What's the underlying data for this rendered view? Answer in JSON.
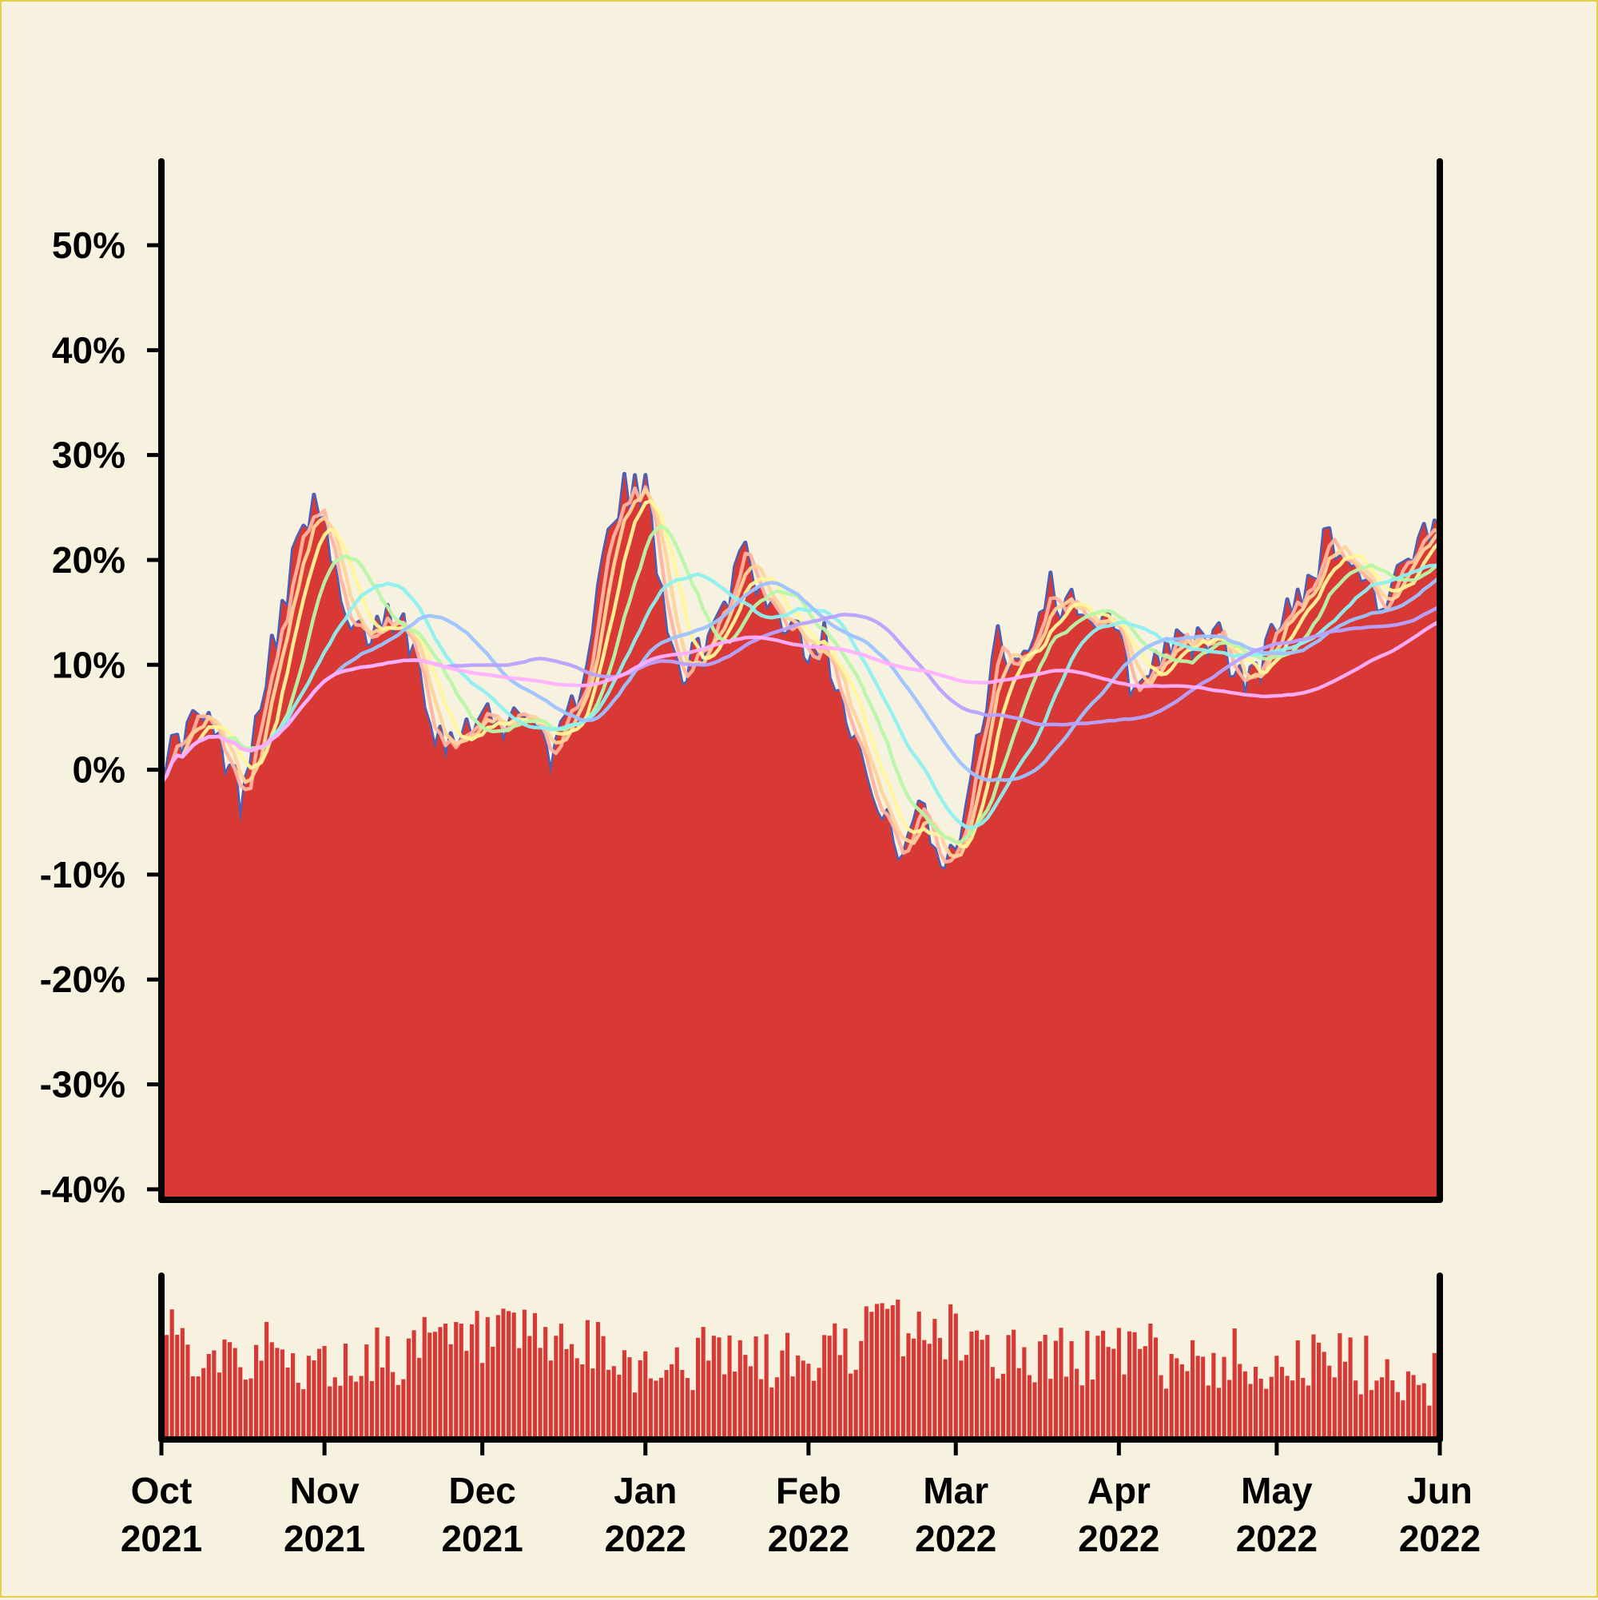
{
  "chart_data": [
    {
      "type": "area",
      "title": "",
      "xlabel": "",
      "ylabel": "",
      "y_unit": "%",
      "xlim": [
        "2021-10-01",
        "2022-06-01"
      ],
      "ylim": [
        -41,
        58
      ],
      "grid": false,
      "legend": "none",
      "y_ticks": [
        {
          "value": 50,
          "label": "50%"
        },
        {
          "value": 40,
          "label": "40%"
        },
        {
          "value": 30,
          "label": "30%"
        },
        {
          "value": 20,
          "label": "20%"
        },
        {
          "value": 10,
          "label": "10%"
        },
        {
          "value": 0,
          "label": "0%"
        },
        {
          "value": -10,
          "label": "-10%"
        },
        {
          "value": -20,
          "label": "-20%"
        },
        {
          "value": -30,
          "label": "-30%"
        },
        {
          "value": -40,
          "label": "-40%"
        }
      ],
      "price_anchors": [
        [
          "2021-10-01",
          1
        ],
        [
          "2021-10-04",
          2
        ],
        [
          "2021-10-08",
          5
        ],
        [
          "2021-10-11",
          3
        ],
        [
          "2021-10-14",
          0
        ],
        [
          "2021-10-16",
          -3
        ],
        [
          "2021-10-19",
          5
        ],
        [
          "2021-10-22",
          12
        ],
        [
          "2021-10-25",
          16
        ],
        [
          "2021-10-28",
          25
        ],
        [
          "2021-10-31",
          24
        ],
        [
          "2021-11-03",
          18
        ],
        [
          "2021-11-06",
          12
        ],
        [
          "2021-11-09",
          13
        ],
        [
          "2021-11-12",
          14
        ],
        [
          "2021-11-15",
          15
        ],
        [
          "2021-11-19",
          10
        ],
        [
          "2021-11-22",
          4
        ],
        [
          "2021-11-25",
          2
        ],
        [
          "2021-11-28",
          5
        ],
        [
          "2021-12-02",
          5
        ],
        [
          "2021-12-05",
          3
        ],
        [
          "2021-12-08",
          7
        ],
        [
          "2021-12-12",
          3
        ],
        [
          "2021-12-15",
          1
        ],
        [
          "2021-12-18",
          5
        ],
        [
          "2021-12-22",
          14
        ],
        [
          "2021-12-25",
          22
        ],
        [
          "2021-12-28",
          26
        ],
        [
          "2022-01-01",
          26
        ],
        [
          "2022-01-04",
          18
        ],
        [
          "2022-01-07",
          10
        ],
        [
          "2022-01-10",
          10
        ],
        [
          "2022-01-14",
          13
        ],
        [
          "2022-01-17",
          17
        ],
        [
          "2022-01-19",
          22
        ],
        [
          "2022-01-22",
          18
        ],
        [
          "2022-01-25",
          15
        ],
        [
          "2022-01-29",
          14
        ],
        [
          "2022-02-01",
          12
        ],
        [
          "2022-02-04",
          12
        ],
        [
          "2022-02-07",
          8
        ],
        [
          "2022-02-10",
          3
        ],
        [
          "2022-02-13",
          -3
        ],
        [
          "2022-02-16",
          -6
        ],
        [
          "2022-02-19",
          -7
        ],
        [
          "2022-02-22",
          -4
        ],
        [
          "2022-02-25",
          -8
        ],
        [
          "2022-02-28",
          -9
        ],
        [
          "2022-03-03",
          -3
        ],
        [
          "2022-03-06",
          5
        ],
        [
          "2022-03-09",
          13
        ],
        [
          "2022-03-12",
          10
        ],
        [
          "2022-03-15",
          12
        ],
        [
          "2022-03-18",
          17
        ],
        [
          "2022-03-21",
          16
        ],
        [
          "2022-03-25",
          16
        ],
        [
          "2022-03-28",
          14
        ],
        [
          "2022-04-01",
          12
        ],
        [
          "2022-04-04",
          7
        ],
        [
          "2022-04-07",
          10
        ],
        [
          "2022-04-10",
          12
        ],
        [
          "2022-04-14",
          11
        ],
        [
          "2022-04-17",
          13
        ],
        [
          "2022-04-20",
          12
        ],
        [
          "2022-04-24",
          8
        ],
        [
          "2022-04-27",
          9
        ],
        [
          "2022-05-01",
          13
        ],
        [
          "2022-05-04",
          16
        ],
        [
          "2022-05-07",
          18
        ],
        [
          "2022-05-10",
          21
        ],
        [
          "2022-05-13",
          22
        ],
        [
          "2022-05-16",
          19
        ],
        [
          "2022-05-19",
          17
        ],
        [
          "2022-05-22",
          16
        ],
        [
          "2022-05-25",
          19
        ],
        [
          "2022-05-28",
          21
        ],
        [
          "2022-06-01",
          22
        ]
      ],
      "moving_average_colors": [
        "#ffb3a0",
        "#ffd39a",
        "#fff59a",
        "#b8f5a8",
        "#8ef0f0",
        "#9ec2ff",
        "#b8a2ff",
        "#ffb0ff"
      ],
      "price_fill_color": "#d93934",
      "price_line_color": "#4a5fb5"
    },
    {
      "type": "bar",
      "xlim": [
        "2021-10-01",
        "2022-06-01"
      ],
      "bar_color": "#d93934",
      "x_ticks": [
        {
          "date": "2021-10-01",
          "month": "Oct",
          "year": "2021"
        },
        {
          "date": "2021-11-01",
          "month": "Nov",
          "year": "2021"
        },
        {
          "date": "2021-12-01",
          "month": "Dec",
          "year": "2021"
        },
        {
          "date": "2022-01-01",
          "month": "Jan",
          "year": "2022"
        },
        {
          "date": "2022-02-01",
          "month": "Feb",
          "year": "2022"
        },
        {
          "date": "2022-03-01",
          "month": "Mar",
          "year": "2022"
        },
        {
          "date": "2022-04-01",
          "month": "Apr",
          "year": "2022"
        },
        {
          "date": "2022-05-01",
          "month": "May",
          "year": "2022"
        },
        {
          "date": "2022-06-01",
          "month": "Jun",
          "year": "2022"
        }
      ],
      "volume_profile": [
        [
          "2021-10-01",
          0.62
        ],
        [
          "2021-10-15",
          0.58
        ],
        [
          "2021-11-01",
          0.45
        ],
        [
          "2021-11-15",
          0.55
        ],
        [
          "2021-12-01",
          0.62
        ],
        [
          "2021-12-15",
          0.6
        ],
        [
          "2022-01-01",
          0.45
        ],
        [
          "2022-01-15",
          0.52
        ],
        [
          "2022-02-01",
          0.48
        ],
        [
          "2022-02-15",
          0.72
        ],
        [
          "2022-03-01",
          0.66
        ],
        [
          "2022-03-15",
          0.5
        ],
        [
          "2022-04-01",
          0.55
        ],
        [
          "2022-04-15",
          0.5
        ],
        [
          "2022-05-01",
          0.5
        ],
        [
          "2022-05-15",
          0.46
        ],
        [
          "2022-06-01",
          0.38
        ]
      ]
    }
  ]
}
